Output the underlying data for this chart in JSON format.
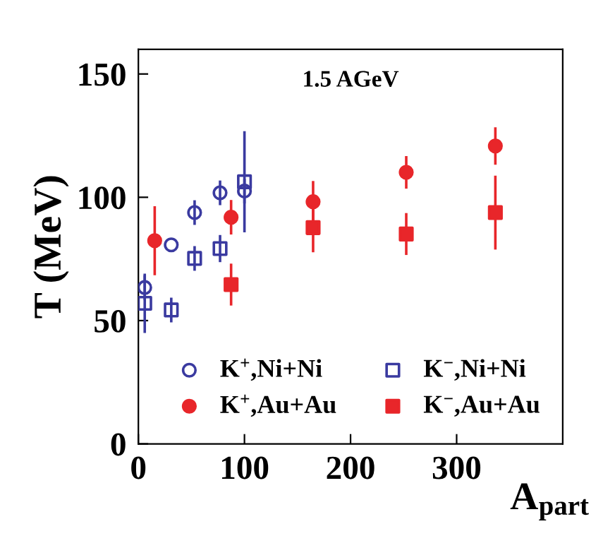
{
  "chart_data": {
    "type": "scatter",
    "xlabel": "A$_{part}$",
    "ylabel": "T (MeV)",
    "annotations": [
      "1.5 AGeV"
    ],
    "xlim": [
      0,
      400
    ],
    "ylim": [
      0,
      160
    ],
    "xticks": [
      0,
      100,
      200,
      300
    ],
    "yticks": [
      0,
      50,
      100,
      150
    ],
    "grid": false,
    "legend": "bottom left",
    "series": [
      {
        "name": "K$^{+}$,Ni+Ni",
        "color": "#3a3aa0",
        "marker": "circle",
        "x": [
          6,
          31,
          53,
          77,
          100
        ],
        "values": [
          63.4,
          80.7,
          93.8,
          101.8,
          102.5
        ],
        "errors": [
          5,
          null,
          5,
          5,
          5
        ]
      },
      {
        "name": "K$^{−}$,Ni+Ni",
        "color": "#3a3aa0",
        "marker": "square",
        "x": [
          6,
          31,
          53,
          77,
          100
        ],
        "values": [
          57,
          54.3,
          75.2,
          79.2,
          106.3
        ],
        "errors": [
          12,
          5,
          5,
          5.5,
          20.5
        ]
      },
      {
        "name": "K$^{+}$,Au+Au",
        "color": "#e8262a",
        "marker": "circle",
        "x": [
          15.4,
          87.4,
          164.7,
          252.5,
          336.5
        ],
        "values": [
          82.4,
          91.9,
          98.2,
          110.1,
          120.8
        ],
        "errors": [
          14,
          7,
          8.4,
          6.6,
          7.6
        ]
      },
      {
        "name": "K$^{−}$,Au+Au",
        "color": "#e8262a",
        "marker": "square",
        "x": [
          87.4,
          164.7,
          252.5,
          336.5
        ],
        "values": [
          64.6,
          87.7,
          85.1,
          93.8
        ],
        "errors": [
          8.5,
          10,
          8.5,
          15
        ]
      }
    ]
  }
}
